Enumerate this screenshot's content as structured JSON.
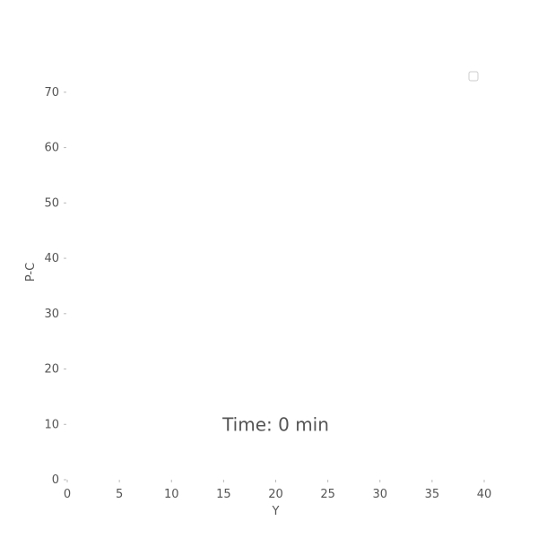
{
  "chart_data": {
    "type": "scatter",
    "xlabel": "Y",
    "ylabel": "P-C",
    "xlim": [
      0,
      40
    ],
    "ylim": [
      0,
      75
    ],
    "x_ticks": [
      0,
      5,
      10,
      15,
      20,
      25,
      30,
      35,
      40
    ],
    "y_ticks": [
      0,
      10,
      20,
      30,
      40,
      50,
      60,
      70
    ],
    "grid": false,
    "legend": {
      "placement": "top-right",
      "entries": []
    },
    "annotation": {
      "text": "Time: 0 min",
      "x": 20,
      "y": 10
    },
    "series": [
      {
        "values": []
      }
    ]
  }
}
